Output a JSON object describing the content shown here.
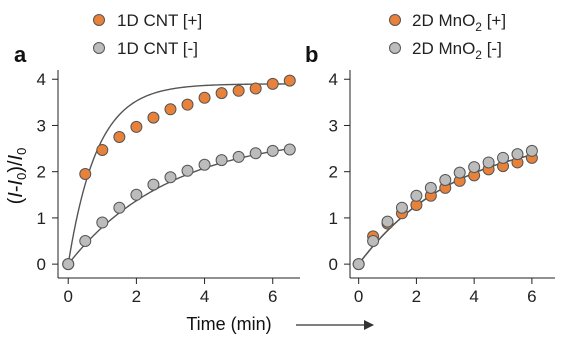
{
  "chart_data": [
    {
      "type": "scatter",
      "panel_label": "a",
      "xlabel": "Time (min)",
      "ylabel": "(I-I0)/I0",
      "xlim": [
        -0.3,
        6.8
      ],
      "ylim": [
        -0.3,
        4.2
      ],
      "x_ticks": [
        "0",
        "2",
        "4",
        "6"
      ],
      "y_ticks": [
        "0",
        "1",
        "2",
        "3",
        "4"
      ],
      "grid": false,
      "legend_position": "top",
      "series": [
        {
          "name": "1D CNT [+]",
          "color": "#e8823a",
          "x": [
            0,
            0.5,
            1.0,
            1.5,
            2.0,
            2.5,
            3.0,
            3.5,
            4.0,
            4.5,
            5.0,
            5.5,
            6.0,
            6.5
          ],
          "y": [
            0,
            1.95,
            2.47,
            2.75,
            2.97,
            3.17,
            3.35,
            3.45,
            3.6,
            3.7,
            3.75,
            3.8,
            3.9,
            3.97
          ],
          "fit": {
            "model": "a*(1-exp(-t/tau))",
            "a": 3.9,
            "tau": 0.85
          }
        },
        {
          "name": "1D CNT [-]",
          "color": "#bcbcbc",
          "x": [
            0,
            0.5,
            1.0,
            1.5,
            2.0,
            2.5,
            3.0,
            3.5,
            4.0,
            4.5,
            5.0,
            5.5,
            6.0,
            6.5
          ],
          "y": [
            0,
            0.5,
            0.9,
            1.22,
            1.5,
            1.72,
            1.88,
            2.02,
            2.15,
            2.25,
            2.32,
            2.4,
            2.45,
            2.48
          ],
          "fit": {
            "model": "a*(1-exp(-t/tau))",
            "a": 2.82,
            "tau": 3.0
          }
        }
      ]
    },
    {
      "type": "scatter",
      "panel_label": "b",
      "xlabel": "",
      "ylabel": "",
      "xlim": [
        -0.3,
        6.8
      ],
      "ylim": [
        -0.3,
        4.2
      ],
      "x_ticks": [
        "0",
        "2",
        "4",
        "6"
      ],
      "y_ticks": [
        "0",
        "1",
        "2",
        "3",
        "4"
      ],
      "grid": false,
      "legend_position": "top",
      "series": [
        {
          "name": "2D MnO",
          "name_subscript": "2",
          "name_suffix": " [+]",
          "color": "#e8823a",
          "x": [
            0,
            0.5,
            1.0,
            1.5,
            2.0,
            2.5,
            3.0,
            3.5,
            4.0,
            4.5,
            5.0,
            5.5,
            6.0
          ],
          "y": [
            0,
            0.6,
            0.88,
            1.1,
            1.28,
            1.48,
            1.65,
            1.8,
            1.92,
            2.05,
            2.12,
            2.2,
            2.3
          ],
          "fit": {
            "model": "a*(1-exp(-t/tau))",
            "a": 2.85,
            "tau": 3.4
          }
        },
        {
          "name": "2D MnO",
          "name_subscript": "2",
          "name_suffix": " [-]",
          "color": "#bcbcbc",
          "x": [
            0,
            0.5,
            1.0,
            1.5,
            2.0,
            2.5,
            3.0,
            3.5,
            4.0,
            4.5,
            5.0,
            5.5,
            6.0
          ],
          "y": [
            0,
            0.5,
            0.92,
            1.22,
            1.48,
            1.65,
            1.82,
            1.98,
            2.1,
            2.2,
            2.3,
            2.38,
            2.45
          ],
          "fit": {
            "model": "a*(1-exp(-t/tau))",
            "a": 2.85,
            "tau": 3.4
          }
        }
      ]
    }
  ]
}
